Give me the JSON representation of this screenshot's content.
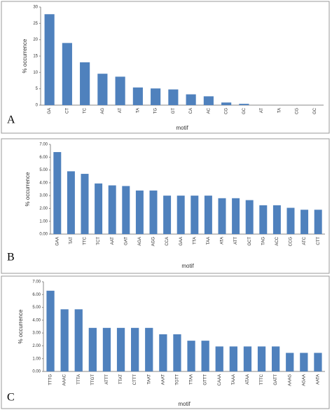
{
  "chart_data": [
    {
      "type": "bar",
      "label": "A",
      "x_label": "motif",
      "y_label": "% occurrence",
      "color": "#4f81bd",
      "grid": false,
      "categories": [
        "GA",
        "CT",
        "TC",
        "AG",
        "AT",
        "TA",
        "TG",
        "GT",
        "CA",
        "AC",
        "CG",
        "GC",
        "AT",
        "TA",
        "CG",
        "GC"
      ],
      "values": [
        27.8,
        19,
        13.1,
        9.6,
        8.7,
        5.4,
        5.1,
        4.8,
        3.3,
        2.7,
        0.8,
        0.4,
        0,
        0,
        0,
        0
      ],
      "ylim": [
        0,
        30
      ],
      "yticks": [
        0,
        5,
        10,
        15,
        20,
        25,
        30
      ]
    },
    {
      "type": "bar",
      "label": "B",
      "x_label": "motif",
      "y_label": "% occurrence",
      "color": "#4f81bd",
      "grid": false,
      "categories": [
        "GAA",
        "TAT",
        "TTC",
        "TCT",
        "AAT",
        "GAT",
        "AGA",
        "AGG",
        "CCA",
        "GAA",
        "TTA",
        "TAA",
        "ATA",
        "ATT",
        "GCT",
        "TAG",
        "ACC",
        "CCG",
        "ATC",
        "CTT"
      ],
      "values": [
        6.4,
        4.9,
        4.7,
        3.95,
        3.8,
        3.75,
        3.4,
        3.4,
        3.0,
        3.0,
        3.0,
        3.0,
        2.8,
        2.8,
        2.65,
        2.25,
        2.25,
        2.05,
        1.9,
        1.9
      ],
      "ylim": [
        0,
        7
      ],
      "yticks": [
        {
          "value": 0,
          "label": "0.00"
        },
        {
          "value": 1,
          "label": "1.00"
        },
        {
          "value": 2,
          "label": "2.00"
        },
        {
          "value": 3,
          "label": "3.00"
        },
        {
          "value": 4,
          "label": "4.00"
        },
        {
          "value": 5,
          "label": "5.00"
        },
        {
          "value": 6,
          "label": "6.00"
        },
        {
          "value": 7,
          "label": "7.00"
        }
      ]
    },
    {
      "type": "bar",
      "label": "C",
      "x_label": "motif",
      "y_label": "% occurrence",
      "color": "#4f81bd",
      "grid": false,
      "categories": [
        "TTTG",
        "AAAC",
        "TTTA",
        "TTGT",
        "ATTT",
        "TTAT",
        "CTTT",
        "TAAT",
        "AAAT",
        "TGTT",
        "TTAA",
        "GTTT",
        "CAAA",
        "TAAA",
        "ATAA",
        "TTTC",
        "GATT",
        "AAAG",
        "AGAA",
        "AATA"
      ],
      "values": [
        6.3,
        4.85,
        4.85,
        3.4,
        3.4,
        3.4,
        3.4,
        3.4,
        2.9,
        2.9,
        2.4,
        2.4,
        1.95,
        1.95,
        1.95,
        1.95,
        1.95,
        1.45,
        1.45,
        1.45
      ],
      "ylim": [
        0,
        7
      ],
      "yticks": [
        {
          "value": 0,
          "label": "0.00"
        },
        {
          "value": 1,
          "label": "1.00"
        },
        {
          "value": 2,
          "label": "2.00"
        },
        {
          "value": 3,
          "label": "3.00"
        },
        {
          "value": 4,
          "label": "4.00"
        },
        {
          "value": 5,
          "label": "5.00"
        },
        {
          "value": 6,
          "label": "6.00"
        },
        {
          "value": 7,
          "label": "7.00"
        }
      ]
    }
  ]
}
